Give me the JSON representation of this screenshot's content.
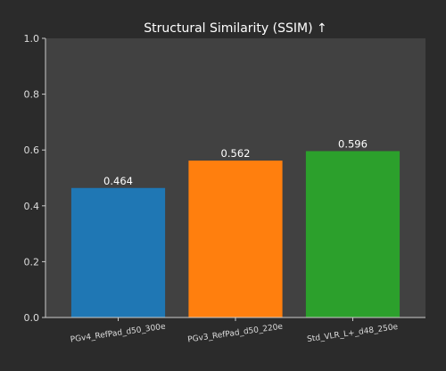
{
  "chart_data": {
    "type": "bar",
    "title": "Structural Similarity (SSIM) ↑",
    "xlabel": "",
    "ylabel": "",
    "categories": [
      "PGv4_RefPad_d50_300e",
      "PGv3_RefPad_d50_220e",
      "Std_VLR_L+_d48_250e"
    ],
    "values": [
      0.464,
      0.562,
      0.596
    ],
    "value_labels": [
      "0.464",
      "0.562",
      "0.596"
    ],
    "ylim": [
      0,
      1.0
    ],
    "yticks": [
      0.0,
      0.2,
      0.4,
      0.6,
      0.8,
      1.0
    ],
    "ytick_labels": [
      "0.0",
      "0.2",
      "0.4",
      "0.6",
      "0.8",
      "1.0"
    ],
    "bar_colors": [
      "#1f77b4",
      "#ff7f0e",
      "#2ca02c"
    ],
    "grid": false,
    "legend": "none"
  },
  "colors": {
    "figure_bg": "#2b2b2b",
    "axes_bg": "#414141",
    "text": "#ffffff",
    "tick_text": "#dddddd"
  }
}
